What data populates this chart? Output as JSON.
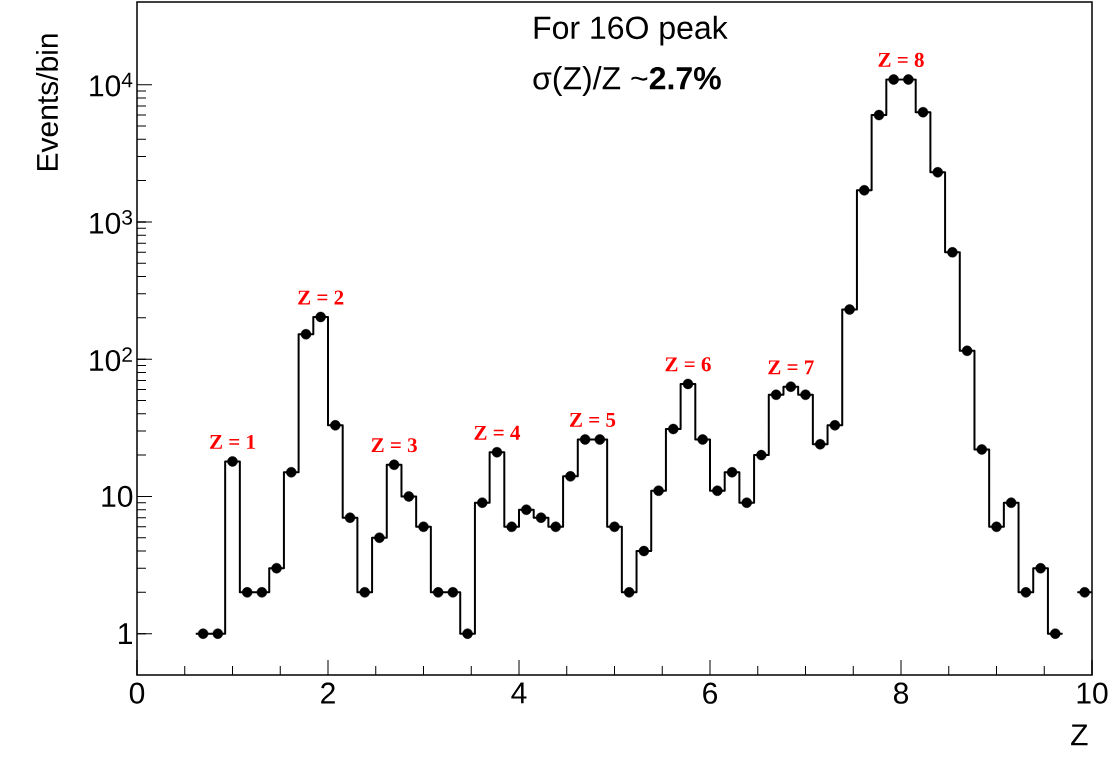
{
  "chart_data": {
    "type": "step",
    "xlabel": "Z",
    "ylabel": "Events/bin",
    "x": [
      0.6923,
      0.8462,
      1.0,
      1.1538,
      1.3077,
      1.4615,
      1.6154,
      1.7692,
      1.9231,
      2.0769,
      2.2308,
      2.3846,
      2.5385,
      2.6923,
      2.8462,
      3.0,
      3.1538,
      3.3077,
      3.4615,
      3.6154,
      3.7692,
      3.9231,
      4.0769,
      4.2308,
      4.3846,
      4.5385,
      4.6923,
      4.8462,
      5.0,
      5.1538,
      5.3077,
      5.4615,
      5.6154,
      5.7692,
      5.9231,
      6.0769,
      6.2308,
      6.3846,
      6.5385,
      6.6923,
      6.8462,
      7.0,
      7.1538,
      7.3077,
      7.4615,
      7.6154,
      7.7692,
      7.9231,
      8.0769,
      8.2308,
      8.3846,
      8.5385,
      8.6923,
      8.8462,
      9.0,
      9.1538,
      9.3077,
      9.4615,
      9.6154,
      9.7692,
      9.9231
    ],
    "values": [
      1,
      1,
      18,
      2,
      2,
      3,
      15,
      152,
      203,
      33,
      7,
      2,
      5,
      17,
      10,
      6,
      2,
      2,
      1,
      9,
      21,
      6,
      8,
      7,
      6,
      14,
      26,
      26,
      6,
      2,
      4,
      11,
      31,
      66,
      26,
      11,
      15,
      9,
      20,
      55,
      63,
      55,
      24,
      33,
      230,
      1700,
      6000,
      10900,
      10900,
      6300,
      2300,
      600,
      115,
      22,
      6,
      9,
      2,
      3,
      1,
      null,
      2
    ],
    "color": "#000000",
    "marker": "circle",
    "log": "y",
    "xlim": [
      0,
      10
    ],
    "xticks": [
      0,
      2,
      4,
      6,
      8,
      10
    ],
    "ylim": [
      0.5,
      40000
    ],
    "yticks": [
      1,
      10,
      {
        "value": 100,
        "label": "10$^{2}$"
      },
      {
        "value": 1000,
        "label": "10$^{3}$"
      },
      {
        "value": 10000,
        "label": "10$^{4}$"
      }
    ],
    "annotations": [
      {
        "text": "Z = 1",
        "x": 1.0,
        "y": 18
      },
      {
        "text": "Z = 2",
        "x": 1.9231,
        "y": 203
      },
      {
        "text": "Z = 3",
        "x": 2.6923,
        "y": 17
      },
      {
        "text": "Z = 4",
        "x": 3.7692,
        "y": 21
      },
      {
        "text": "Z = 5",
        "x": 4.7692,
        "y": 26
      },
      {
        "text": "Z = 6",
        "x": 5.7692,
        "y": 66
      },
      {
        "text": "Z = 7",
        "x": 6.8462,
        "y": 63
      },
      {
        "text": "Z = 8",
        "x": 8.0,
        "y": 10900
      },
      "For 16O peak",
      "σ(Z)/Z ~**2.7%**"
    ]
  }
}
